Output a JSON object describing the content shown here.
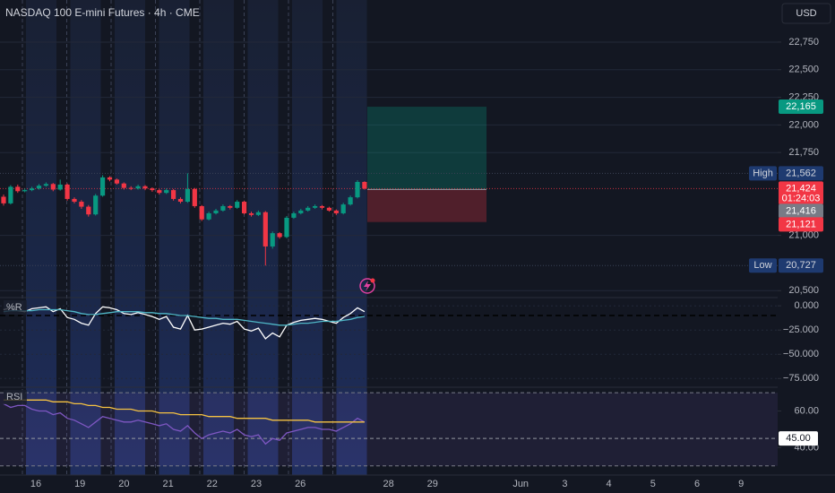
{
  "chart_data": [
    {
      "type": "candlestick",
      "title": "NASDAQ 100 E-mini Futures · 4h · CME",
      "currency": "USD",
      "x_labels": [
        "16",
        "19",
        "20",
        "21",
        "22",
        "23",
        "26",
        null,
        "28",
        "29",
        null,
        "Jun",
        "3",
        "4",
        "5",
        "6",
        "9"
      ],
      "open": [
        21350,
        21290,
        21440,
        21400,
        21410,
        21425,
        21450,
        21465,
        21415,
        21460,
        21330,
        21305,
        21260,
        21190,
        21360,
        21525,
        21505,
        21470,
        21430,
        21425,
        21445,
        21425,
        21410,
        21385,
        21410,
        21330,
        21305,
        21420,
        21265,
        21145,
        21200,
        21225,
        21265,
        21250,
        21305,
        21200,
        21185,
        21210,
        20900,
        21020,
        20985,
        21160,
        21200,
        21225,
        21250,
        21265,
        21250,
        21225,
        21200,
        21280,
        21345,
        21484
      ],
      "high": [
        21370,
        21455,
        21460,
        21425,
        21440,
        21465,
        21480,
        21475,
        21505,
        21470,
        21345,
        21320,
        21275,
        21375,
        21545,
        21535,
        21515,
        21480,
        21445,
        21460,
        21455,
        21435,
        21420,
        21425,
        21420,
        21345,
        21562,
        21430,
        21275,
        21215,
        21240,
        21280,
        21275,
        21320,
        21315,
        21215,
        21225,
        21220,
        21035,
        21030,
        21175,
        21215,
        21240,
        21265,
        21280,
        21275,
        21260,
        21235,
        21295,
        21360,
        21500,
        21490
      ],
      "low": [
        21270,
        21280,
        21385,
        21390,
        21400,
        21415,
        21440,
        21400,
        21405,
        21315,
        21290,
        21240,
        21170,
        21180,
        21350,
        21490,
        21460,
        21415,
        21410,
        21415,
        21410,
        21395,
        21370,
        21375,
        21315,
        21290,
        21295,
        21250,
        21130,
        21135,
        21190,
        21215,
        21235,
        21240,
        21190,
        21170,
        21175,
        20727,
        20880,
        20970,
        20975,
        21150,
        21190,
        21215,
        21240,
        21235,
        21215,
        21185,
        21190,
        21270,
        21335,
        21415
      ],
      "close": [
        21290,
        21440,
        21400,
        21410,
        21425,
        21450,
        21465,
        21415,
        21460,
        21330,
        21305,
        21260,
        21190,
        21360,
        21525,
        21505,
        21470,
        21430,
        21425,
        21445,
        21425,
        21410,
        21385,
        21410,
        21330,
        21305,
        21420,
        21265,
        21145,
        21200,
        21225,
        21265,
        21250,
        21305,
        21200,
        21185,
        21210,
        20900,
        21020,
        20985,
        21160,
        21200,
        21225,
        21250,
        21265,
        21250,
        21225,
        21200,
        21280,
        21345,
        21484,
        21424
      ],
      "up_color": "#089981",
      "down_color": "#f23645",
      "ylim": [
        20437,
        23131
      ],
      "yticks": [
        {
          "value": 20500,
          "label": "20,500"
        },
        {
          "value": 21000,
          "label": "21,000"
        },
        {
          "value": 21750,
          "label": "21,750"
        },
        {
          "value": 22000,
          "label": "22,000"
        },
        {
          "value": 22250,
          "label": "22,250"
        },
        {
          "value": 22500,
          "label": "22,500"
        },
        {
          "value": 22750,
          "label": "22,750"
        }
      ],
      "grid": true,
      "high_marker": {
        "label": "High",
        "value": 21562,
        "value_label": "21,562"
      },
      "low_marker": {
        "label": "Low",
        "value": 20727,
        "value_label": "20,727"
      },
      "last_price": {
        "value": 21424,
        "label": "21,424",
        "countdown": "01:24:03"
      },
      "position": {
        "target": {
          "value": 22165,
          "label": "22,165"
        },
        "entry": {
          "value": 21416,
          "label": "21,416"
        },
        "stop": {
          "value": 21121,
          "label": "21,121"
        }
      }
    },
    {
      "type": "line",
      "title": "%R",
      "series": [
        {
          "color": "#ffffff",
          "values": [
            -4,
            -2,
            -5,
            -6,
            -3,
            -2,
            -1,
            -6,
            -3,
            -12,
            -14,
            -18,
            -20,
            -8,
            -1,
            -2,
            -4,
            -8,
            -9,
            -7,
            -9,
            -11,
            -14,
            -11,
            -22,
            -24,
            -10,
            -25,
            -24,
            -22,
            -20,
            -18,
            -19,
            -16,
            -24,
            -26,
            -23,
            -34,
            -28,
            -32,
            -20,
            -17,
            -15,
            -14,
            -13,
            -14,
            -16,
            -18,
            -12,
            -8,
            -2,
            -6
          ]
        },
        {
          "color": "#4fb6c6",
          "values": [
            -6,
            -5,
            -5,
            -5,
            -5,
            -4,
            -4,
            -4,
            -4,
            -5,
            -6,
            -8,
            -9,
            -9,
            -8,
            -7,
            -6,
            -6,
            -6,
            -6,
            -7,
            -7,
            -8,
            -8,
            -9,
            -10,
            -10,
            -11,
            -12,
            -13,
            -13,
            -14,
            -14,
            -14,
            -15,
            -16,
            -17,
            -18,
            -19,
            -20,
            -20,
            -19,
            -18,
            -18,
            -17,
            -16,
            -16,
            -16,
            -15,
            -14,
            -12,
            -11
          ]
        }
      ],
      "ylim": [
        -84,
        8.5
      ],
      "yticks": [
        {
          "value": 0,
          "label": "0.000"
        },
        {
          "value": -25,
          "label": "−25.000"
        },
        {
          "value": -50,
          "label": "−50.000"
        },
        {
          "value": -75,
          "label": "−75.000"
        }
      ],
      "level": -10,
      "grid": true
    },
    {
      "type": "line",
      "title": "RSI",
      "series": [
        {
          "color": "#7e57c2",
          "values": [
            64,
            62,
            63,
            63,
            61,
            60,
            60,
            58,
            59,
            56,
            55,
            53,
            51,
            54,
            57,
            56,
            55,
            54,
            54,
            55,
            54,
            53,
            52,
            53,
            50,
            49,
            52,
            48,
            45,
            47,
            48,
            49,
            48,
            50,
            47,
            46,
            47,
            42,
            45,
            44,
            48,
            49,
            50,
            51,
            51,
            50,
            50,
            49,
            51,
            53,
            56,
            54
          ]
        },
        {
          "color": "#f5c242",
          "values": [
            66,
            66,
            66,
            66,
            66,
            66,
            66,
            65,
            65,
            65,
            64,
            64,
            63,
            63,
            62,
            62,
            61,
            61,
            61,
            60,
            60,
            60,
            59,
            59,
            59,
            58,
            58,
            58,
            58,
            57,
            57,
            57,
            57,
            56,
            56,
            56,
            56,
            56,
            55,
            55,
            55,
            55,
            55,
            55,
            54,
            54,
            54,
            54,
            54,
            54,
            54,
            54
          ]
        }
      ],
      "ylim": [
        25,
        73
      ],
      "yticks": [
        {
          "value": 40,
          "label": "40.00"
        },
        {
          "value": 60,
          "label": "60.00"
        }
      ],
      "band": [
        30,
        70
      ],
      "marker": {
        "value": 45,
        "label": "45.00"
      }
    }
  ]
}
